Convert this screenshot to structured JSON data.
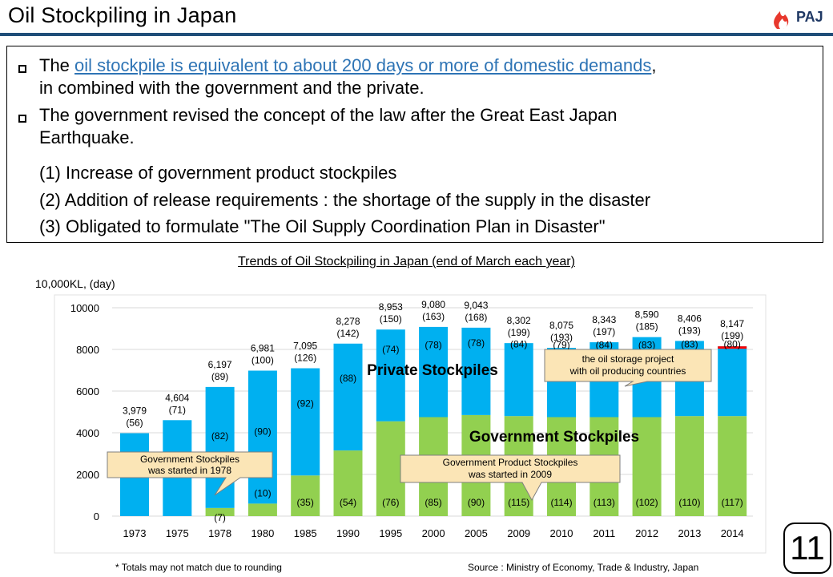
{
  "header": {
    "title": "Oil Stockpiling in Japan",
    "logo_text": "PAJ"
  },
  "bullets": {
    "b1_pre": "The ",
    "b1_link": "oil stockpile is equivalent to about 200 days or more of domestic demands",
    "b1_post": ",",
    "b1_line2": "in combined with the government and the private.",
    "b2_line1": "The government revised the concept of the law after the Great East Japan",
    "b2_line2": "Earthquake.",
    "sub1": "(1) Increase of government product stockpiles",
    "sub2": "(2) Addition of release requirements : the shortage of the supply in the disaster",
    "sub3": "(3) Obligated to formulate \"The Oil Supply Coordination Plan in Disaster\""
  },
  "chart_data": {
    "type": "bar",
    "title": "Trends of Oil Stockpiling in Japan (end of March each year)",
    "unit_label": "10,000KL, (day)",
    "ylim": [
      0,
      10000
    ],
    "yticks": [
      "0",
      "2000",
      "4000",
      "6000",
      "8000",
      "10000"
    ],
    "ytick_values": [
      0,
      2000,
      4000,
      6000,
      8000,
      10000
    ],
    "categories": [
      "1973",
      "1975",
      "1978",
      "1980",
      "1985",
      "1990",
      "1995",
      "2000",
      "2005",
      "2009",
      "2010",
      "2011",
      "2012",
      "2013",
      "2014"
    ],
    "series": [
      {
        "name": "Government Stockpiles",
        "color": "#92d050",
        "values": [
          0,
          0,
          390,
          600,
          1950,
          3150,
          4550,
          4750,
          4850,
          4800,
          4750,
          4750,
          4750,
          4800,
          4800
        ]
      },
      {
        "name": "Private Stockpiles",
        "color": "#00b0f0",
        "values": [
          3979,
          4604,
          5807,
          6381,
          5145,
          5128,
          4403,
          4330,
          4193,
          3502,
          3325,
          3593,
          3840,
          3606,
          3347
        ]
      }
    ],
    "totals": [
      "3,979",
      "4,604",
      "6,197",
      "6,981",
      "7,095",
      "8,278",
      "8,953",
      "9,080",
      "9,043",
      "8,302",
      "8,075",
      "8,343",
      "8,590",
      "8,406",
      "8,147"
    ],
    "total_values": [
      3979,
      4604,
      6197,
      6981,
      7095,
      8278,
      8953,
      9080,
      9043,
      8302,
      8075,
      8343,
      8590,
      8406,
      8147
    ],
    "total_days": [
      "(56)",
      "(71)",
      "(89)",
      "(100)",
      "(126)",
      "(142)",
      "(150)",
      "(163)",
      "(168)",
      "(199)",
      "(193)",
      "(197)",
      "(185)",
      "(193)",
      "(199)"
    ],
    "private_days": [
      "",
      "",
      "(82)",
      "(90)",
      "(92)",
      "(88)",
      "(74)",
      "(78)",
      "(78)",
      "(84)",
      "(79)",
      "(84)",
      "(83)",
      "(83)",
      "(80)"
    ],
    "gov_days": [
      "",
      "",
      "(7)",
      "(10)",
      "(35)",
      "(54)",
      "(76)",
      "(85)",
      "(90)",
      "(115)",
      "(114)",
      "(113)",
      "(102)",
      "(110)",
      "(117)"
    ],
    "private_label": "Private Stockpiles",
    "gov_label": "Government Stockpiles",
    "callouts": {
      "gov_start_line1": "Government Stockpiles",
      "gov_start_line2": "was started in 1978",
      "product_line1": "Government Product Stockpiles",
      "product_line2": "was started in 2009",
      "storage_line1": "the oil storage project",
      "storage_line2": "with oil producing countries"
    },
    "storage_project_value": 80,
    "storage_color": "#ff0000"
  },
  "footer": {
    "note": "* Totals may not match due to rounding",
    "source": "Source : Ministry of Economy, Trade & Industry, Japan",
    "page": "11"
  }
}
